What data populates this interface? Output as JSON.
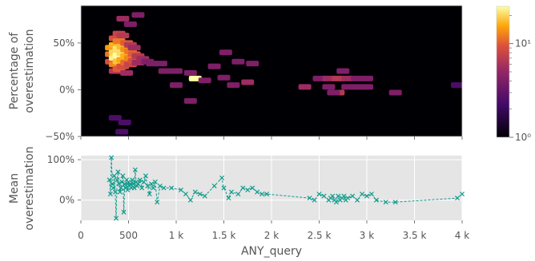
{
  "chart_data": [
    {
      "type": "heatmap",
      "xlabel": "",
      "ylabel": "Percentage of overestimation",
      "xlim": [
        0,
        4000
      ],
      "ylim": [
        -50,
        90
      ],
      "yticks": [
        {
          "v": 50,
          "label": "50%"
        },
        {
          "v": 0,
          "label": "0%"
        },
        {
          "v": -50,
          "label": "−50%"
        }
      ],
      "colorbar": {
        "scale": "log",
        "ticks": [
          {
            "v": 1,
            "label": "10⁰"
          },
          {
            "v": 10,
            "label": "10¹"
          }
        ],
        "range": [
          1,
          25
        ]
      },
      "cells": [
        {
          "x": 320,
          "y": 45,
          "c": 12
        },
        {
          "x": 320,
          "y": 38,
          "c": 9
        },
        {
          "x": 320,
          "y": 30,
          "c": 6
        },
        {
          "x": 360,
          "y": 48,
          "c": 14
        },
        {
          "x": 360,
          "y": 40,
          "c": 18
        },
        {
          "x": 360,
          "y": 34,
          "c": 22
        },
        {
          "x": 360,
          "y": 27,
          "c": 10
        },
        {
          "x": 360,
          "y": 55,
          "c": 6
        },
        {
          "x": 360,
          "y": 20,
          "c": 4
        },
        {
          "x": 400,
          "y": 44,
          "c": 20
        },
        {
          "x": 400,
          "y": 37,
          "c": 25
        },
        {
          "x": 400,
          "y": 30,
          "c": 16
        },
        {
          "x": 400,
          "y": 52,
          "c": 9
        },
        {
          "x": 400,
          "y": 60,
          "c": 5
        },
        {
          "x": 400,
          "y": 22,
          "c": 7
        },
        {
          "x": 440,
          "y": 46,
          "c": 15
        },
        {
          "x": 440,
          "y": 39,
          "c": 19
        },
        {
          "x": 440,
          "y": 32,
          "c": 13
        },
        {
          "x": 440,
          "y": 25,
          "c": 6
        },
        {
          "x": 440,
          "y": 58,
          "c": 4
        },
        {
          "x": 480,
          "y": 43,
          "c": 11
        },
        {
          "x": 480,
          "y": 36,
          "c": 14
        },
        {
          "x": 480,
          "y": 29,
          "c": 8
        },
        {
          "x": 480,
          "y": 50,
          "c": 7
        },
        {
          "x": 480,
          "y": 18,
          "c": 3
        },
        {
          "x": 520,
          "y": 41,
          "c": 9
        },
        {
          "x": 520,
          "y": 34,
          "c": 10
        },
        {
          "x": 520,
          "y": 27,
          "c": 5
        },
        {
          "x": 520,
          "y": 48,
          "c": 4
        },
        {
          "x": 560,
          "y": 38,
          "c": 7
        },
        {
          "x": 560,
          "y": 31,
          "c": 6
        },
        {
          "x": 560,
          "y": 45,
          "c": 3
        },
        {
          "x": 600,
          "y": 36,
          "c": 4
        },
        {
          "x": 600,
          "y": 29,
          "c": 3
        },
        {
          "x": 440,
          "y": 76,
          "c": 3
        },
        {
          "x": 600,
          "y": 80,
          "c": 2
        },
        {
          "x": 520,
          "y": 70,
          "c": 2
        },
        {
          "x": 650,
          "y": 33,
          "c": 3
        },
        {
          "x": 700,
          "y": 30,
          "c": 2
        },
        {
          "x": 750,
          "y": 28,
          "c": 2
        },
        {
          "x": 840,
          "y": 28,
          "c": 2
        },
        {
          "x": 1000,
          "y": 20,
          "c": 2
        },
        {
          "x": 1200,
          "y": 12,
          "c": 25
        },
        {
          "x": 1150,
          "y": 18,
          "c": 2
        },
        {
          "x": 1400,
          "y": 25,
          "c": 2
        },
        {
          "x": 1500,
          "y": 13,
          "c": 2
        },
        {
          "x": 1520,
          "y": 40,
          "c": 2
        },
        {
          "x": 1600,
          "y": 5,
          "c": 2
        },
        {
          "x": 1750,
          "y": 8,
          "c": 3
        },
        {
          "x": 1800,
          "y": 28,
          "c": 2
        },
        {
          "x": 1650,
          "y": 30,
          "c": 2
        },
        {
          "x": 1300,
          "y": 10,
          "c": 2
        },
        {
          "x": 1150,
          "y": -12,
          "c": 2
        },
        {
          "x": 1000,
          "y": 5,
          "c": 2
        },
        {
          "x": 880,
          "y": 20,
          "c": 2
        },
        {
          "x": 460,
          "y": -35,
          "c": 1
        },
        {
          "x": 430,
          "y": -45,
          "c": 1
        },
        {
          "x": 360,
          "y": -30,
          "c": 1
        },
        {
          "x": 2350,
          "y": 3,
          "c": 3
        },
        {
          "x": 2500,
          "y": 12,
          "c": 2
        },
        {
          "x": 2600,
          "y": 12,
          "c": 3
        },
        {
          "x": 2700,
          "y": 12,
          "c": 4
        },
        {
          "x": 2800,
          "y": 12,
          "c": 3
        },
        {
          "x": 2900,
          "y": 12,
          "c": 2
        },
        {
          "x": 2600,
          "y": 3,
          "c": 2
        },
        {
          "x": 2700,
          "y": -3,
          "c": 4
        },
        {
          "x": 2800,
          "y": 3,
          "c": 2
        },
        {
          "x": 2900,
          "y": 3,
          "c": 2
        },
        {
          "x": 3000,
          "y": 3,
          "c": 2
        },
        {
          "x": 3000,
          "y": 12,
          "c": 2
        },
        {
          "x": 2750,
          "y": 20,
          "c": 2
        },
        {
          "x": 3300,
          "y": -3,
          "c": 2
        },
        {
          "x": 2650,
          "y": -3,
          "c": 2
        },
        {
          "x": 3950,
          "y": 5,
          "c": 1
        }
      ]
    },
    {
      "type": "line",
      "xlabel": "ANY_query",
      "ylabel": "Mean overestimation",
      "xlim": [
        0,
        4000
      ],
      "ylim": [
        -50,
        110
      ],
      "xticks": [
        {
          "v": 0,
          "label": "0"
        },
        {
          "v": 500,
          "label": "500"
        },
        {
          "v": 1000,
          "label": "1 k"
        },
        {
          "v": 1500,
          "label": "1.5 k"
        },
        {
          "v": 2000,
          "label": "2 k"
        },
        {
          "v": 2500,
          "label": "2.5 k"
        },
        {
          "v": 3000,
          "label": "3 k"
        },
        {
          "v": 3500,
          "label": "3.5 k"
        },
        {
          "v": 4000,
          "label": "4 k"
        }
      ],
      "yticks": [
        {
          "v": 100,
          "label": "100%"
        },
        {
          "v": 0,
          "label": "0%"
        }
      ],
      "grid": true,
      "color": "#0f9a8c",
      "marker": "x",
      "x": [
        300,
        310,
        320,
        330,
        340,
        350,
        360,
        370,
        380,
        390,
        400,
        410,
        420,
        430,
        440,
        450,
        460,
        470,
        480,
        490,
        500,
        510,
        520,
        530,
        540,
        550,
        560,
        570,
        580,
        590,
        600,
        620,
        640,
        660,
        680,
        700,
        720,
        740,
        760,
        780,
        800,
        830,
        870,
        950,
        1050,
        1100,
        1150,
        1200,
        1250,
        1300,
        1400,
        1480,
        1500,
        1550,
        1580,
        1650,
        1700,
        1750,
        1800,
        1850,
        1900,
        1950,
        2400,
        2450,
        2500,
        2550,
        2600,
        2620,
        2640,
        2660,
        2680,
        2700,
        2720,
        2740,
        2760,
        2780,
        2800,
        2850,
        2900,
        2950,
        3000,
        3050,
        3100,
        3200,
        3300,
        3950,
        4000
      ],
      "y": [
        50,
        15,
        105,
        40,
        30,
        60,
        20,
        -45,
        50,
        70,
        40,
        20,
        30,
        45,
        60,
        -30,
        40,
        30,
        50,
        25,
        45,
        35,
        40,
        30,
        50,
        40,
        30,
        75,
        45,
        35,
        40,
        50,
        30,
        45,
        60,
        35,
        15,
        40,
        30,
        45,
        -5,
        35,
        30,
        30,
        25,
        15,
        0,
        20,
        15,
        10,
        35,
        55,
        30,
        5,
        20,
        15,
        30,
        25,
        30,
        20,
        15,
        15,
        5,
        0,
        15,
        10,
        0,
        5,
        10,
        0,
        -5,
        10,
        0,
        5,
        10,
        0,
        5,
        10,
        0,
        15,
        10,
        15,
        0,
        -5,
        -5,
        5,
        15
      ]
    }
  ]
}
